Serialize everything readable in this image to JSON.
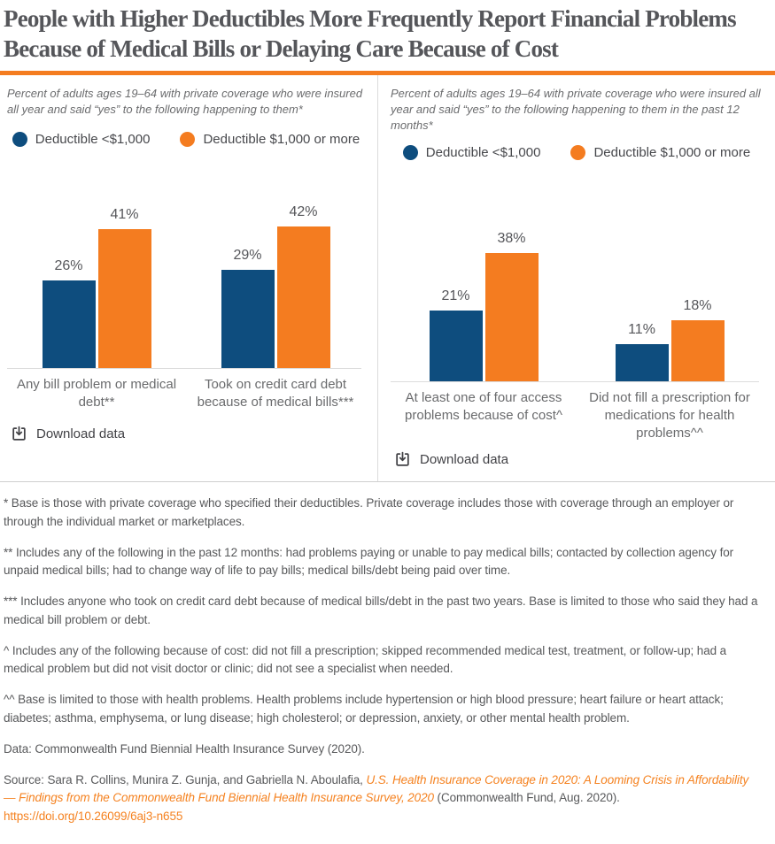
{
  "title": "People with Higher Deductibles More Frequently Report Financial Problems Because of Medical Bills or Delaying Care Because of Cost",
  "colors": {
    "accent_orange": "#F47C20",
    "series_blue": "#0E4D7E",
    "series_orange": "#F47C20",
    "link_orange": "#F58220",
    "title_gray": "#55565A",
    "divider_gray": "#DCDCDC"
  },
  "legend": {
    "items": [
      {
        "label": "Deductible <$1,000",
        "color": "#0E4D7E"
      },
      {
        "label": "Deductible $1,000 or more",
        "color": "#F47C20"
      }
    ]
  },
  "panels": [
    {
      "download_label": "Download data",
      "download_icon": "download-tray-icon"
    },
    {
      "download_label": "Download data",
      "download_icon": "download-tray-icon"
    }
  ],
  "chart_data": [
    {
      "type": "bar",
      "title": "Percent of adults ages 19–64 with private coverage who were insured all year and said “yes” to the following happening to them*",
      "categories": [
        "Any bill problem or medical debt**",
        "Took on credit card debt because of medical bills***"
      ],
      "series": [
        {
          "name": "Deductible <$1,000",
          "color": "#0E4D7E",
          "values": [
            26,
            29
          ]
        },
        {
          "name": "Deductible $1,000 or more",
          "color": "#F47C20",
          "values": [
            41,
            42
          ]
        }
      ],
      "value_labels": [
        "26%",
        "41%",
        "29%",
        "42%"
      ],
      "unit": "%",
      "ylim": [
        0,
        50
      ],
      "grid": false,
      "legend_position": "top"
    },
    {
      "type": "bar",
      "title": "Percent of adults ages 19–64 with private coverage who were insured all year and said “yes” to the following happening to them in the past 12 months*",
      "categories": [
        "At least one of four access problems because of cost^",
        "Did not fill a prescription for medications for health problems^^"
      ],
      "series": [
        {
          "name": "Deductible <$1,000",
          "color": "#0E4D7E",
          "values": [
            21,
            11
          ]
        },
        {
          "name": "Deductible $1,000 or more",
          "color": "#F47C20",
          "values": [
            38,
            18
          ]
        }
      ],
      "value_labels": [
        "21%",
        "38%",
        "11%",
        "18%"
      ],
      "unit": "%",
      "ylim": [
        0,
        50
      ],
      "grid": false,
      "legend_position": "top"
    }
  ],
  "footer": {
    "footnotes": [
      "* Base is those with private coverage who specified their deductibles. Private coverage includes those with coverage through an employer or through the individual market or marketplaces.",
      "** Includes any of the following in the past 12 months: had problems paying or unable to pay medical bills; contacted by collection agency for unpaid medical bills; had to change way of life to pay bills; medical bills/debt being paid over time.",
      "*** Includes anyone who took on credit card debt because of medical bills/debt in the past two years. Base is limited to those who said they had a medical bill problem or debt.",
      "^ Includes any of the following because of cost: did not fill a prescription; skipped recommended medical test, treatment, or follow-up; had a medical problem but did not visit doctor or clinic; did not see a specialist when needed.",
      "^^ Base is limited to those with health problems. Health problems include hypertension or high blood pressure; heart failure or heart attack; diabetes; asthma, emphysema, or lung disease; high cholesterol; or depression, anxiety, or other mental health problem."
    ],
    "data_line": "Data: Commonwealth Fund Biennial Health Insurance Survey (2020).",
    "source": {
      "prefix": "Source: Sara R. Collins, Munira Z. Gunja, and Gabriella N. Aboulafia, ",
      "link_title": "U.S. Health Insurance Coverage in 2020: A Looming Crisis in Affordability — Findings from the Commonwealth Fund Biennial Health Insurance Survey, 2020",
      "suffix": " (Commonwealth Fund, Aug. 2020). ",
      "doi": "https://doi.org/10.26099/6aj3-n655"
    }
  }
}
